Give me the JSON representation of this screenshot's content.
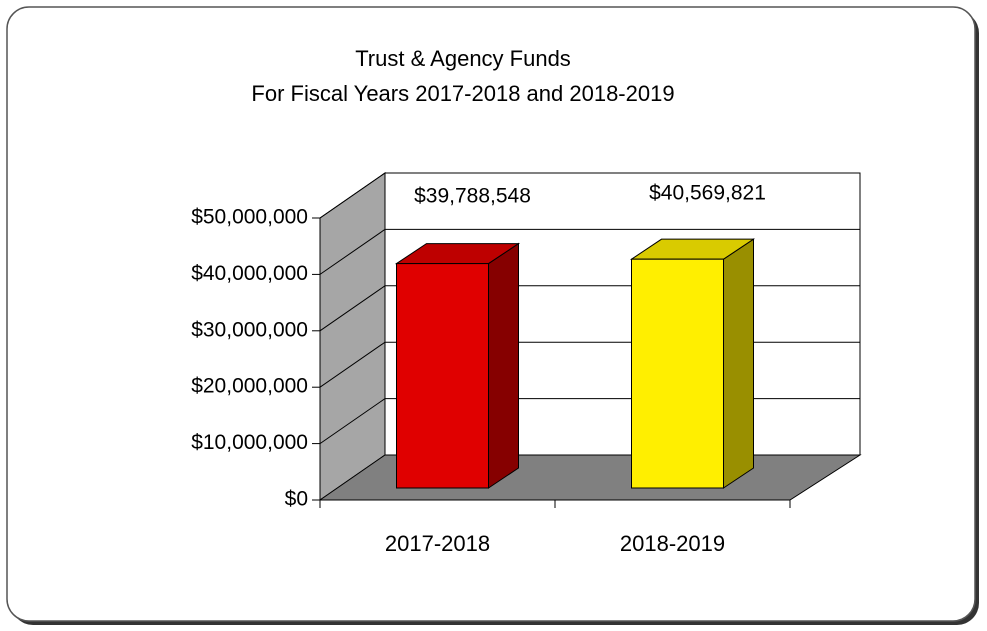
{
  "chart_data": {
    "type": "bar3d",
    "title": "Trust & Agency Funds",
    "subtitle": "For Fiscal Years 2017-2018 and 2018-2019",
    "categories": [
      "2017-2018",
      "2018-2019"
    ],
    "values": [
      39788548,
      40569821
    ],
    "value_labels": [
      "$39,788,548",
      "$40,569,821"
    ],
    "colors": [
      "#e00000",
      "#ffef00"
    ],
    "ylim": [
      0,
      50000000
    ],
    "yticks": [
      {
        "value": 0,
        "label": "$0"
      },
      {
        "value": 10000000,
        "label": "$10,000,000"
      },
      {
        "value": 20000000,
        "label": "$20,000,000"
      },
      {
        "value": 30000000,
        "label": "$30,000,000"
      },
      {
        "value": 40000000,
        "label": "$40,000,000"
      },
      {
        "value": 50000000,
        "label": "$50,000,000"
      }
    ],
    "grid": true
  }
}
